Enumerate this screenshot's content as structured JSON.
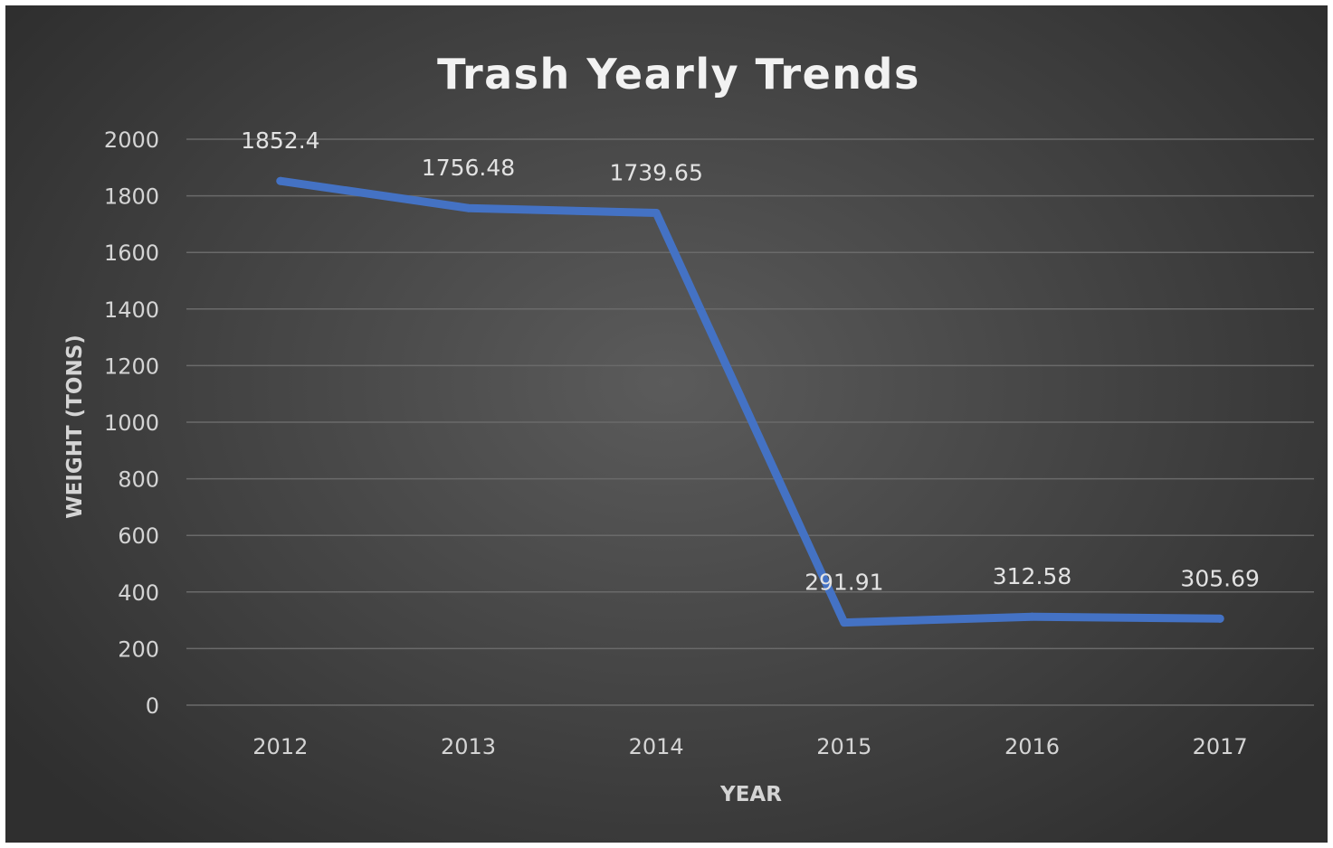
{
  "chart_data": {
    "type": "line",
    "title": "Trash Yearly Trends",
    "xlabel": "YEAR",
    "ylabel": "WEIGHT (TONS)",
    "categories": [
      "2012",
      "2013",
      "2014",
      "2015",
      "2016",
      "2017"
    ],
    "series": [
      {
        "values": [
          1852.4,
          1756.48,
          1739.65,
          291.91,
          312.58,
          305.69
        ],
        "labels": [
          "1852.4",
          "1756.48",
          "1739.65",
          "291.91",
          "312.58",
          "305.69"
        ],
        "color": "#4472c4"
      }
    ],
    "ylim": [
      0,
      2000
    ],
    "yticks": [
      0,
      200,
      400,
      600,
      800,
      1000,
      1200,
      1400,
      1600,
      1800,
      2000
    ],
    "grid": true,
    "legend": "none",
    "background": "#3f3f3f"
  }
}
